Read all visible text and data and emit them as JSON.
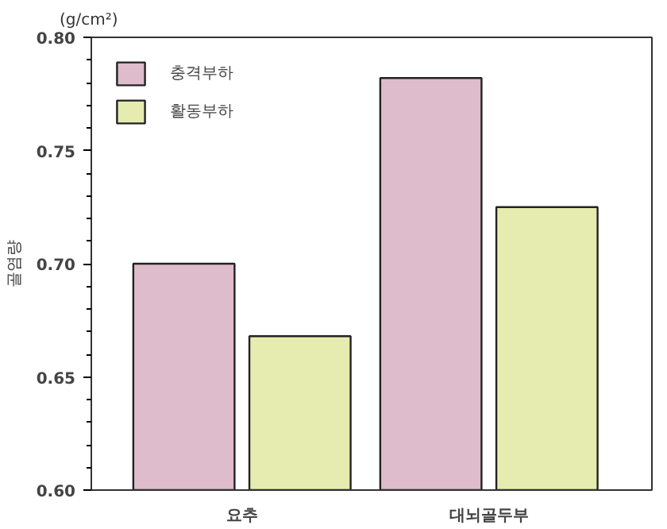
{
  "chart_data": {
    "type": "bar",
    "ylabel": "골염량",
    "annotations": [
      "(g/cm²)"
    ],
    "categories": [
      "요추",
      "대뇌골두부"
    ],
    "series": [
      {
        "name": "충격부하",
        "color": "#dfbccb",
        "values": [
          0.7,
          0.782
        ]
      },
      {
        "name": "활동부하",
        "color": "#e6ebb0",
        "values": [
          0.668,
          0.725
        ]
      }
    ],
    "ylim": [
      0.6,
      0.8
    ],
    "yticks": [
      {
        "value": 0.6,
        "label": "0.60"
      },
      {
        "value": 0.65,
        "label": "0.65"
      },
      {
        "value": 0.7,
        "label": "0.70"
      },
      {
        "value": 0.75,
        "label": "0.75"
      },
      {
        "value": 0.8,
        "label": "0.80"
      }
    ],
    "legend": "top left",
    "grid": false
  }
}
